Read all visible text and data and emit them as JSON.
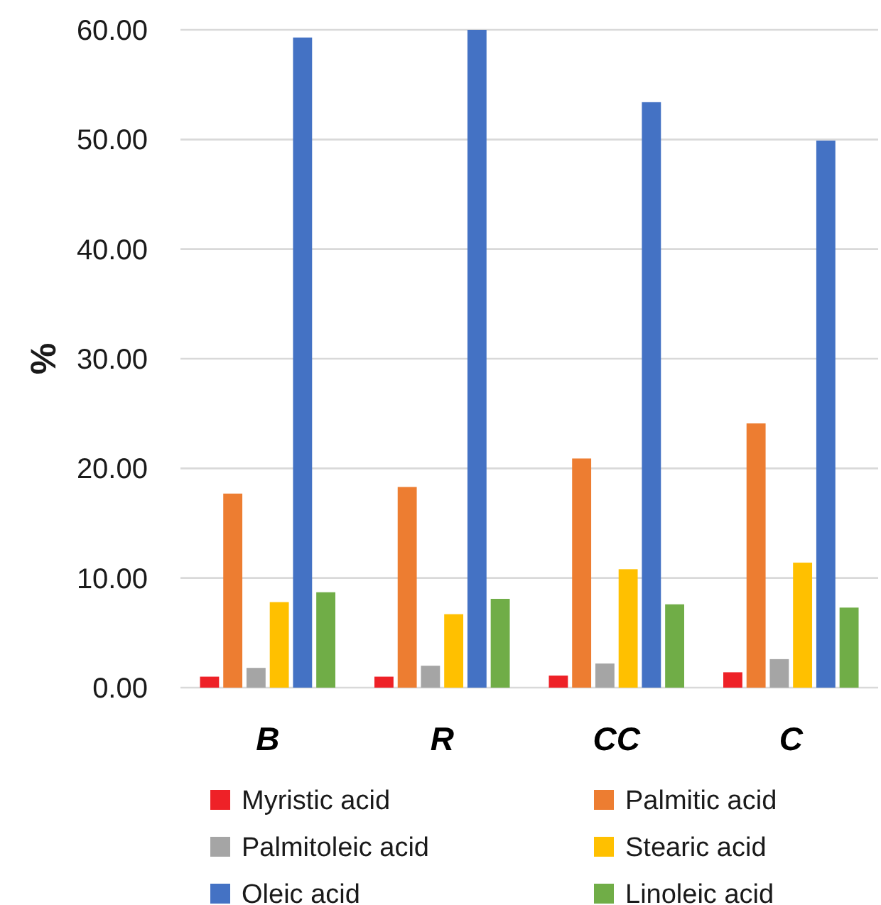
{
  "chart_data": {
    "type": "bar",
    "categories": [
      "B",
      "R",
      "CC",
      "C"
    ],
    "series": [
      {
        "name": "Myristic acid",
        "color": "#ee2127",
        "values": [
          1.0,
          1.0,
          1.1,
          1.4
        ]
      },
      {
        "name": "Palmitic acid",
        "color": "#ed7d31",
        "values": [
          17.7,
          18.3,
          20.9,
          24.1
        ]
      },
      {
        "name": "Palmitoleic acid",
        "color": "#a5a5a5",
        "values": [
          1.8,
          2.0,
          2.2,
          2.6
        ]
      },
      {
        "name": "Stearic acid",
        "color": "#ffc000",
        "values": [
          7.8,
          6.7,
          10.8,
          11.4
        ]
      },
      {
        "name": "Oleic acid",
        "color": "#4472c4",
        "values": [
          59.3,
          60.0,
          53.4,
          49.9
        ]
      },
      {
        "name": "Linoleic acid",
        "color": "#70ad47",
        "values": [
          8.7,
          8.1,
          7.6,
          7.3
        ]
      }
    ],
    "ylabel": "%",
    "ylim": [
      0,
      60
    ],
    "yticks": [
      {
        "value": 0,
        "label": "0.00"
      },
      {
        "value": 10,
        "label": "10.00"
      },
      {
        "value": 20,
        "label": "20.00"
      },
      {
        "value": 30,
        "label": "30.00"
      },
      {
        "value": 40,
        "label": "40.00"
      },
      {
        "value": 50,
        "label": "50.00"
      },
      {
        "value": 60,
        "label": "60.00"
      }
    ],
    "grid": "y",
    "legend": "bottom"
  }
}
